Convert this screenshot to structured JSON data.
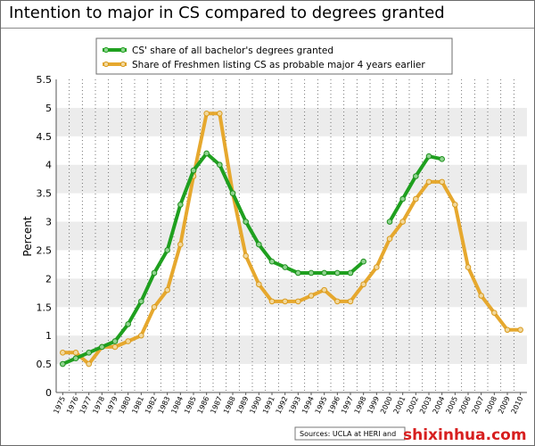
{
  "chart_data": {
    "type": "line",
    "title": "Intention to major in CS compared to degrees granted",
    "ylabel": "Percent",
    "xlabel": "",
    "ylim": [
      0,
      5.5
    ],
    "yticks": [
      "0",
      "0.5",
      "1",
      "1.5",
      "2",
      "2.5",
      "3",
      "3.5",
      "4",
      "4.5",
      "5",
      "5.5"
    ],
    "x": [
      "1975",
      "1976",
      "1977",
      "1978",
      "1979",
      "1980",
      "1981",
      "1982",
      "1983",
      "1984",
      "1985",
      "1986",
      "1987",
      "1988",
      "1989",
      "1990",
      "1991",
      "1992",
      "1993",
      "1994",
      "1995",
      "1996",
      "1997",
      "1998",
      "1999",
      "2000",
      "2001",
      "2002",
      "2003",
      "2004",
      "2005",
      "2006",
      "2007",
      "2008",
      "2009",
      "2010"
    ],
    "grid": true,
    "legend_position": "top-center",
    "series": [
      {
        "name": "CS' share of all bachelor's degrees granted",
        "color": "#1fa01f",
        "marker": "#8fd48f",
        "values": [
          0.5,
          0.6,
          0.7,
          0.8,
          0.9,
          1.2,
          1.6,
          2.1,
          2.5,
          3.3,
          3.9,
          4.2,
          4.0,
          3.5,
          3.0,
          2.6,
          2.3,
          2.2,
          2.1,
          2.1,
          2.1,
          2.1,
          2.1,
          2.3,
          null,
          3.0,
          3.4,
          3.8,
          4.15,
          4.1,
          null,
          null,
          null,
          null,
          null,
          null
        ]
      },
      {
        "name": "Share of Freshmen listing CS as probable major 4 years earlier",
        "color": "#e6a82e",
        "marker": "#f2d89c",
        "values": [
          0.7,
          0.7,
          0.5,
          0.8,
          0.8,
          0.9,
          1.0,
          1.5,
          1.8,
          2.6,
          3.8,
          4.9,
          4.9,
          3.5,
          2.4,
          1.9,
          1.6,
          1.6,
          1.6,
          1.7,
          1.8,
          1.6,
          1.6,
          1.9,
          2.2,
          2.7,
          3.0,
          3.4,
          3.7,
          3.7,
          3.3,
          2.2,
          1.7,
          1.4,
          1.1,
          1.1
        ]
      }
    ],
    "source": "Sources: UCLA at HERI and"
  },
  "watermark": {
    "url_text": "shixinhua.com"
  }
}
